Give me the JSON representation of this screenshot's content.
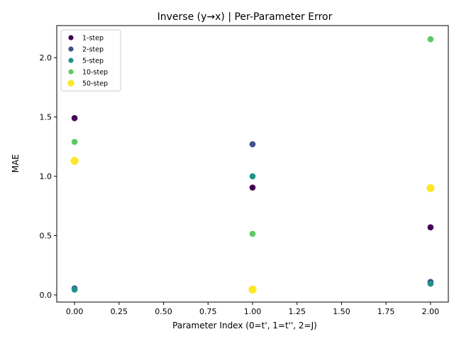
{
  "chart_data": {
    "type": "scatter",
    "title": "Inverse (y→x) | Per-Parameter Error",
    "xlabel": "Parameter Index (0=t', 1=t'', 2=J)",
    "ylabel": "MAE",
    "xlim": [
      -0.1,
      2.1
    ],
    "ylim": [
      -0.06,
      2.27
    ],
    "xticks": [
      0.0,
      0.25,
      0.5,
      0.75,
      1.0,
      1.25,
      1.5,
      1.75,
      2.0
    ],
    "xtick_labels": [
      "0.00",
      "0.25",
      "0.50",
      "0.75",
      "1.00",
      "1.25",
      "1.50",
      "1.75",
      "2.00"
    ],
    "yticks": [
      0.0,
      0.5,
      1.0,
      1.5,
      2.0
    ],
    "ytick_labels": [
      "0.0",
      "0.5",
      "1.0",
      "1.5",
      "2.0"
    ],
    "grid": false,
    "legend_position": "upper-left",
    "series": [
      {
        "name": "1-step",
        "color": "#440154",
        "marker_scale": 1,
        "x": [
          0,
          1,
          2
        ],
        "y": [
          1.49,
          0.905,
          0.57
        ]
      },
      {
        "name": "2-step",
        "color": "#3b528b",
        "marker_scale": 1,
        "x": [
          0,
          1,
          2
        ],
        "y": [
          0.055,
          1.27,
          0.11
        ]
      },
      {
        "name": "5-step",
        "color": "#21918c",
        "marker_scale": 1,
        "x": [
          0,
          1,
          2
        ],
        "y": [
          0.045,
          1.0,
          0.095
        ]
      },
      {
        "name": "10-step",
        "color": "#5ec962",
        "marker_scale": 1,
        "x": [
          0,
          1,
          2
        ],
        "y": [
          1.29,
          0.515,
          2.155
        ]
      },
      {
        "name": "50-step",
        "color": "#fde725",
        "marker_scale": 1.3,
        "x": [
          0,
          1,
          2
        ],
        "y": [
          1.13,
          0.045,
          0.9
        ]
      }
    ]
  }
}
